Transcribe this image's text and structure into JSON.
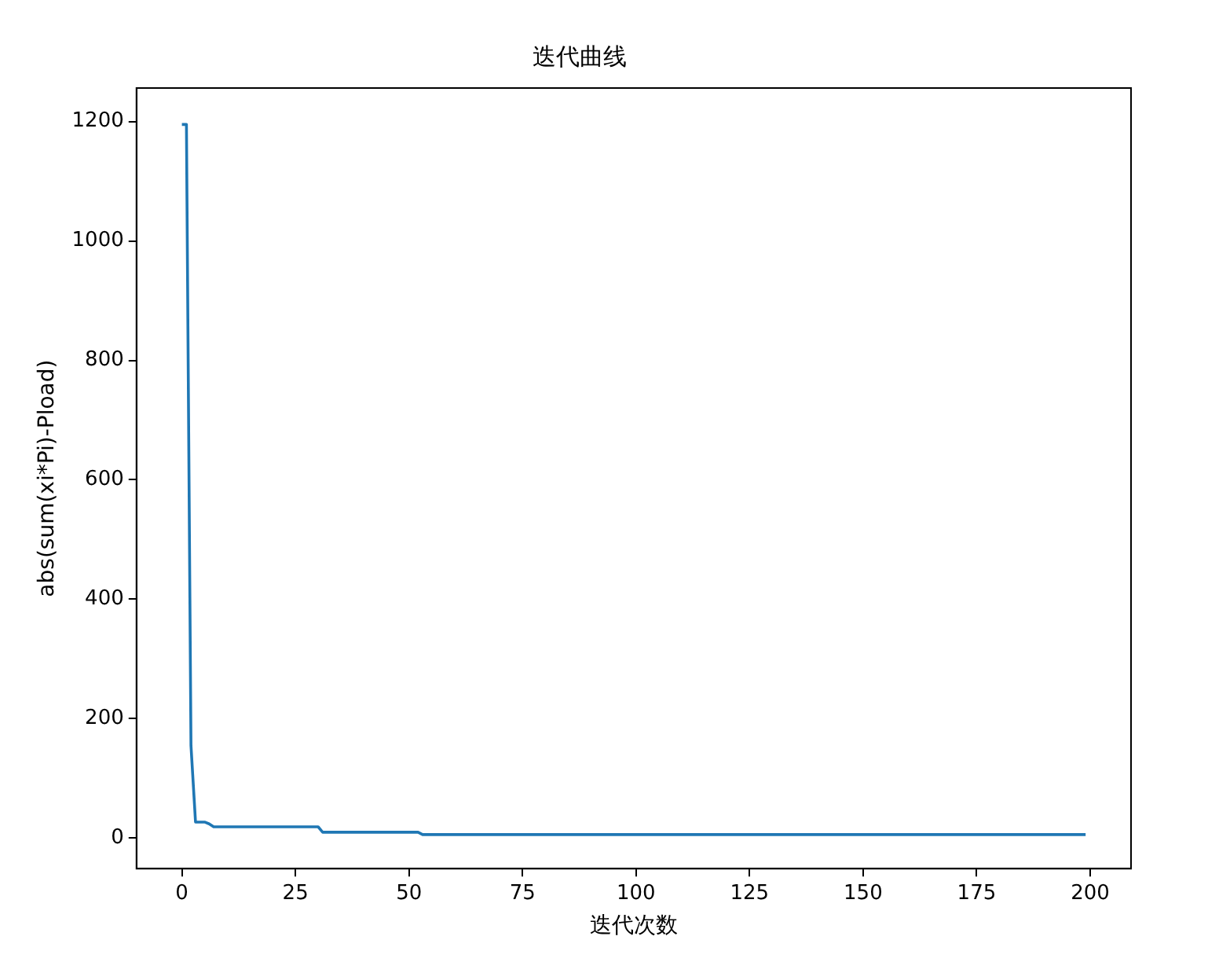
{
  "chart_data": {
    "type": "line",
    "title": "迭代曲线",
    "xlabel": "迭代次数",
    "ylabel": "abs(sum(xi*Pi)-Pload)",
    "x": [
      0,
      1,
      2,
      3,
      5,
      6,
      7,
      30,
      31,
      52,
      53,
      199
    ],
    "series": [
      {
        "color": "#1f77b4",
        "values": [
          1195,
          1195,
          155,
          27,
          27,
          24,
          19,
          19,
          10,
          10,
          6,
          6
        ]
      }
    ],
    "xlim": [
      -10,
      209
    ],
    "xticks": [
      0,
      25,
      50,
      75,
      100,
      125,
      150,
      175,
      200
    ],
    "ylim": [
      -51,
      1256
    ],
    "yticks": [
      0,
      200,
      400,
      600,
      800,
      1000,
      1200
    ],
    "grid": false,
    "legend": false,
    "marker": "none",
    "line_style": "solid"
  }
}
